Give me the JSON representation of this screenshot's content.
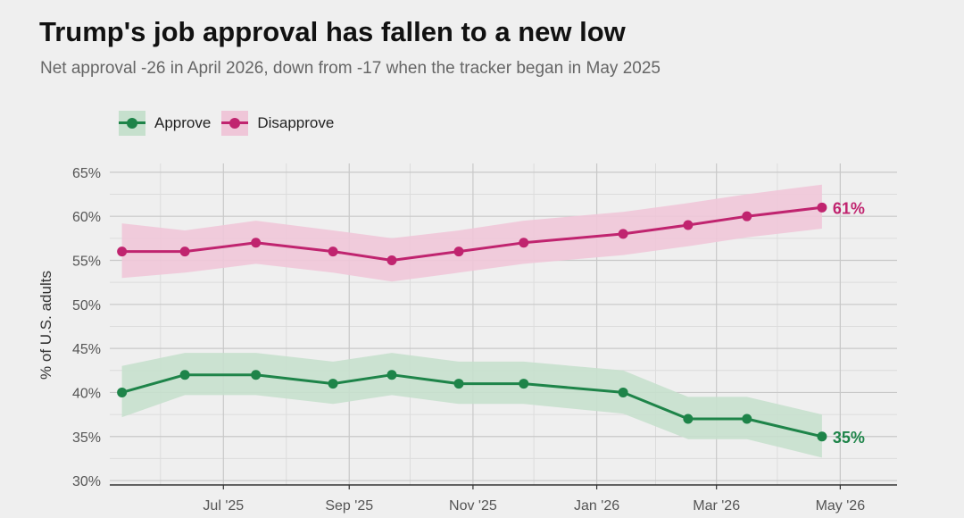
{
  "header": {
    "title": "Trump's job approval has fallen to a new low",
    "subtitle": "Net approval -26 in April 2026, down from -17 when the tracker began in May 2025"
  },
  "colors": {
    "approve": "#1e8449",
    "approve_band": "#c6e0cd",
    "disapprove": "#c0246f",
    "disapprove_band": "#efc6d8",
    "background": "#efefef"
  },
  "chart_data": {
    "type": "line",
    "title": "Trump's job approval has fallen to a new low",
    "subtitle": "Net approval -26 in April 2026, down from -17 when the tracker began in May 2025",
    "xlabel": "",
    "ylabel": "% of U.S. adults",
    "ylim": [
      29.5,
      66
    ],
    "yticks": [
      30,
      35,
      40,
      45,
      50,
      55,
      60,
      65
    ],
    "ytick_labels": [
      "30%",
      "35%",
      "40%",
      "45%",
      "50%",
      "55%",
      "60%",
      "65%"
    ],
    "xlim": [
      "2025-05-06",
      "2026-05-29"
    ],
    "xticks": [
      "2025-07-01",
      "2025-09-01",
      "2025-11-01",
      "2026-01-01",
      "2026-03-01",
      "2026-05-01"
    ],
    "xtick_labels": [
      "Jul '25",
      "Sep '25",
      "Nov '25",
      "Jan '26",
      "Mar '26",
      "May '26"
    ],
    "grid": true,
    "legend": "top-left",
    "x": [
      "2025-05-12",
      "2025-06-12",
      "2025-07-17",
      "2025-08-24",
      "2025-09-22",
      "2025-10-25",
      "2025-11-26",
      "2026-01-14",
      "2026-02-15",
      "2026-03-16",
      "2026-04-22"
    ],
    "series": [
      {
        "name": "Approve",
        "values": [
          40,
          42,
          42,
          41,
          42,
          41,
          41,
          40,
          37,
          37,
          35
        ],
        "lower": [
          37.2,
          39.7,
          39.7,
          38.7,
          39.7,
          38.7,
          38.7,
          37.6,
          34.7,
          34.7,
          32.6
        ],
        "upper": [
          43.0,
          44.5,
          44.5,
          43.5,
          44.5,
          43.5,
          43.5,
          42.5,
          39.5,
          39.5,
          37.5
        ],
        "end_label": "35%"
      },
      {
        "name": "Disapprove",
        "values": [
          56,
          56,
          57,
          56,
          55,
          56,
          57,
          58,
          59,
          60,
          61
        ],
        "lower": [
          53.0,
          53.6,
          54.6,
          53.6,
          52.6,
          53.6,
          54.6,
          55.6,
          56.6,
          57.6,
          58.6
        ],
        "upper": [
          59.2,
          58.4,
          59.5,
          58.4,
          57.5,
          58.4,
          59.5,
          60.5,
          61.5,
          62.5,
          63.6
        ],
        "end_label": "61%"
      }
    ]
  }
}
